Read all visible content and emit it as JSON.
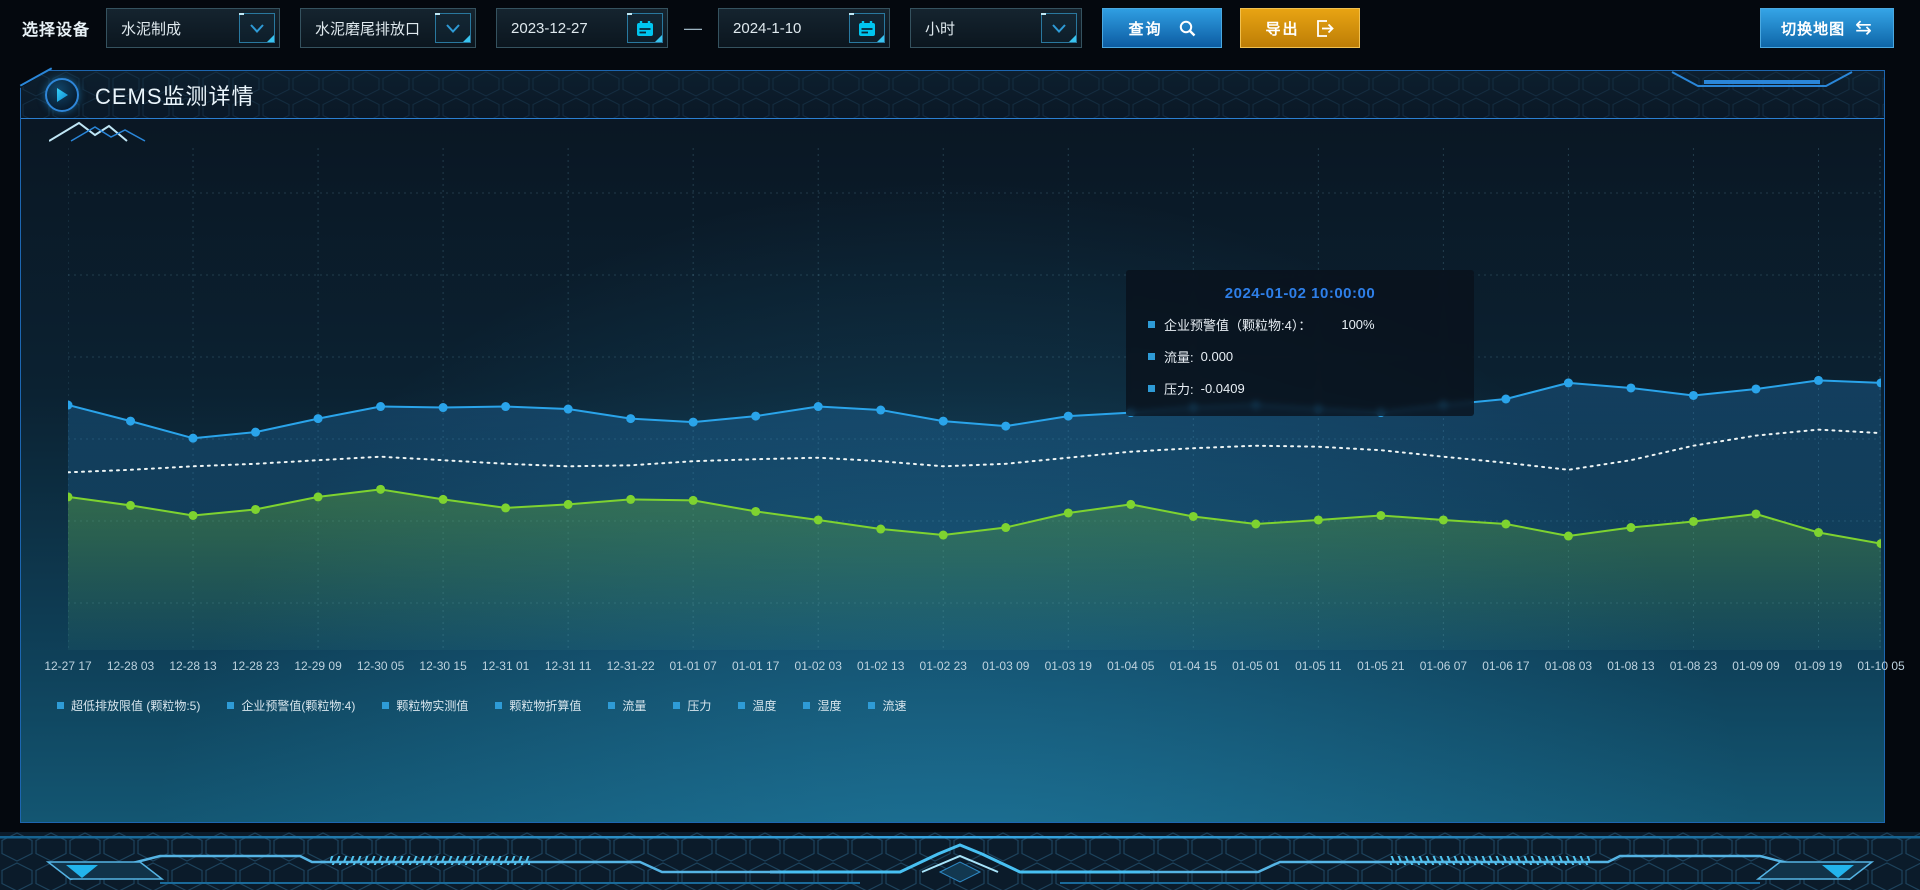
{
  "toolbar": {
    "device_label": "选择设备",
    "device_select_value": "水泥制成",
    "port_select_value": "水泥磨尾排放口",
    "date_start_value": "2023-12-27",
    "date_separator": "—",
    "date_end_value": "2024-1-10",
    "interval_select_value": "小时",
    "query_label": "查询",
    "export_label": "导出",
    "switch_map_label": "切换地图",
    "swap_icon_glyph": "⇆"
  },
  "panel": {
    "title": "CEMS监测详情"
  },
  "tooltip": {
    "title": "2024-01-02 10:00:00",
    "rows": [
      {
        "label": "企业预警值（颗粒物:4）：",
        "value": "100%"
      },
      {
        "label": "流量:",
        "value": "0.000"
      },
      {
        "label": "压力:",
        "value": "-0.0409"
      }
    ]
  },
  "legend": [
    "超低排放限值 (颗粒物:5)",
    "企业预警值(颗粒物:4)",
    "颗粒物实测值",
    "颗粒物折算值",
    "流量",
    "压力",
    "温度",
    "湿度",
    "流速"
  ],
  "chart_data": {
    "type": "line",
    "title": "",
    "xlabel": "",
    "ylabel": "",
    "ylim": [
      0,
      100
    ],
    "grid": true,
    "legend_position": "bottom",
    "x": [
      "12-27 17",
      "12-28 03",
      "12-28 13",
      "12-28 23",
      "12-29 09",
      "12-30 05",
      "12-30 15",
      "12-31 01",
      "12-31 11",
      "12-31-22",
      "01-01 07",
      "01-01 17",
      "01-02 03",
      "01-02 13",
      "01-02 23",
      "01-03 09",
      "01-03 19",
      "01-04 05",
      "01-04 15",
      "01-05 01",
      "01-05 11",
      "01-05 21",
      "01-06 07",
      "01-06 17",
      "01-08 03",
      "01-08 13",
      "01-08 23",
      "01-09 09",
      "01-09 19",
      "01-10 05"
    ],
    "series": [
      {
        "name": "企业预警值(颗粒物:4)",
        "color": "#2aa4ea",
        "style": "solid",
        "markers": true,
        "area": true,
        "values": [
          48.8,
          45.6,
          42.2,
          43.4,
          46.1,
          48.5,
          48.3,
          48.5,
          48.0,
          46.1,
          45.4,
          46.6,
          48.5,
          47.8,
          45.6,
          44.6,
          46.6,
          47.3,
          48.3,
          48.8,
          48.0,
          47.3,
          48.8,
          50.0,
          53.2,
          52.2,
          50.7,
          52.0,
          53.7,
          53.2
        ]
      },
      {
        "name": "流量",
        "color": "#eef5f5",
        "style": "dotted",
        "markers": false,
        "area": false,
        "values": [
          35.4,
          35.9,
          36.6,
          37.1,
          37.8,
          38.5,
          37.8,
          37.1,
          36.6,
          36.8,
          37.6,
          38.0,
          38.3,
          37.6,
          36.6,
          37.1,
          38.3,
          39.5,
          40.2,
          40.7,
          40.5,
          39.8,
          38.5,
          37.3,
          35.9,
          37.8,
          40.7,
          42.7,
          43.9,
          43.2
        ]
      },
      {
        "name": "压力",
        "color": "#7ed330",
        "style": "solid",
        "markers": true,
        "area": true,
        "values": [
          30.5,
          28.8,
          26.8,
          28.0,
          30.5,
          32.0,
          30.0,
          28.3,
          29.0,
          30.0,
          29.8,
          27.6,
          25.9,
          24.1,
          22.9,
          24.4,
          27.3,
          29.0,
          26.6,
          25.1,
          25.9,
          26.8,
          25.9,
          25.1,
          22.7,
          24.4,
          25.6,
          27.1,
          23.4,
          21.2
        ]
      }
    ]
  },
  "colors": {
    "accent_blue": "#2aa4ea",
    "accent_green": "#7ed330",
    "accent_cyan": "#39c4ef",
    "export_orange": "#d9940f",
    "panel_border": "#1d66b0",
    "tooltip_title": "#2e7fe8",
    "legend_marker": "#2e9bd6"
  }
}
